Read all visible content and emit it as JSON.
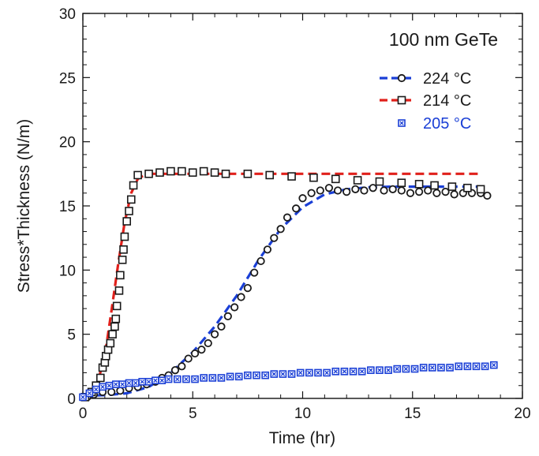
{
  "chart_data": {
    "type": "scatter",
    "annotation": "100 nm GeTe",
    "xlabel": "Time (hr)",
    "ylabel": "Stress*Thickness (N/m)",
    "xlim": [
      0,
      20
    ],
    "ylim": [
      0,
      30
    ],
    "xticks": [
      "0",
      "5",
      "10",
      "15",
      "20"
    ],
    "yticks": [
      "0",
      "5",
      "10",
      "15",
      "20",
      "25",
      "30"
    ],
    "grid": false,
    "legend_position": "top-right",
    "colors": {
      "s224_fit": "#1a3fd6",
      "s224_marker": "#1a1a1a",
      "s214_fit": "#e0201b",
      "s214_marker": "#1a1a1a",
      "s205_marker": "#1a3fd6",
      "s205_text": "#1a3fd6"
    },
    "series": [
      {
        "name": "224 °C",
        "marker": "circle",
        "points": [
          [
            0.2,
            0.1
          ],
          [
            0.5,
            0.3
          ],
          [
            0.9,
            0.5
          ],
          [
            1.3,
            0.5
          ],
          [
            1.7,
            0.6
          ],
          [
            2.1,
            0.8
          ],
          [
            2.5,
            0.9
          ],
          [
            2.9,
            1.1
          ],
          [
            3.3,
            1.3
          ],
          [
            3.6,
            1.6
          ],
          [
            3.9,
            1.8
          ],
          [
            4.2,
            2.2
          ],
          [
            4.5,
            2.5
          ],
          [
            4.8,
            3.1
          ],
          [
            5.1,
            3.5
          ],
          [
            5.4,
            3.8
          ],
          [
            5.7,
            4.3
          ],
          [
            6.0,
            5.0
          ],
          [
            6.3,
            5.6
          ],
          [
            6.6,
            6.4
          ],
          [
            6.9,
            7.1
          ],
          [
            7.2,
            7.9
          ],
          [
            7.5,
            8.6
          ],
          [
            7.8,
            9.8
          ],
          [
            8.1,
            10.7
          ],
          [
            8.4,
            11.6
          ],
          [
            8.7,
            12.5
          ],
          [
            9.0,
            13.2
          ],
          [
            9.3,
            14.1
          ],
          [
            9.7,
            14.8
          ],
          [
            10.0,
            15.6
          ],
          [
            10.4,
            16.0
          ],
          [
            10.8,
            16.2
          ],
          [
            11.2,
            16.4
          ],
          [
            11.6,
            16.2
          ],
          [
            12.0,
            16.1
          ],
          [
            12.4,
            16.3
          ],
          [
            12.8,
            16.2
          ],
          [
            13.2,
            16.4
          ],
          [
            13.7,
            16.2
          ],
          [
            14.1,
            16.3
          ],
          [
            14.5,
            16.2
          ],
          [
            14.9,
            16.0
          ],
          [
            15.3,
            16.1
          ],
          [
            15.7,
            16.2
          ],
          [
            16.1,
            16.0
          ],
          [
            16.5,
            16.1
          ],
          [
            16.9,
            15.9
          ],
          [
            17.3,
            16.0
          ],
          [
            17.7,
            16.0
          ],
          [
            18.1,
            16.0
          ],
          [
            18.4,
            15.8
          ]
        ],
        "fit": [
          [
            0,
            0.2
          ],
          [
            1,
            0.25
          ],
          [
            2,
            0.4
          ],
          [
            3,
            0.9
          ],
          [
            4,
            2.0
          ],
          [
            5,
            3.6
          ],
          [
            6,
            5.6
          ],
          [
            7,
            8.0
          ],
          [
            8,
            10.8
          ],
          [
            9,
            13.2
          ],
          [
            10,
            14.9
          ],
          [
            11,
            15.9
          ],
          [
            12,
            16.3
          ],
          [
            13,
            16.45
          ],
          [
            14,
            16.5
          ],
          [
            18.4,
            16.5
          ]
        ]
      },
      {
        "name": "214 °C",
        "marker": "square",
        "points": [
          [
            0.1,
            0.1
          ],
          [
            0.4,
            0.5
          ],
          [
            0.6,
            1.0
          ],
          [
            0.8,
            1.6
          ],
          [
            0.9,
            2.4
          ],
          [
            1.0,
            2.8
          ],
          [
            1.05,
            3.3
          ],
          [
            1.15,
            3.8
          ],
          [
            1.25,
            4.3
          ],
          [
            1.35,
            5.0
          ],
          [
            1.45,
            5.6
          ],
          [
            1.5,
            6.2
          ],
          [
            1.55,
            7.2
          ],
          [
            1.65,
            8.4
          ],
          [
            1.7,
            9.6
          ],
          [
            1.8,
            10.8
          ],
          [
            1.85,
            11.6
          ],
          [
            1.9,
            12.6
          ],
          [
            2.0,
            13.8
          ],
          [
            2.1,
            14.6
          ],
          [
            2.2,
            15.5
          ],
          [
            2.3,
            16.6
          ],
          [
            2.5,
            17.4
          ],
          [
            3.0,
            17.5
          ],
          [
            3.5,
            17.6
          ],
          [
            4.0,
            17.7
          ],
          [
            4.5,
            17.7
          ],
          [
            5.0,
            17.6
          ],
          [
            5.5,
            17.7
          ],
          [
            6.0,
            17.6
          ],
          [
            6.5,
            17.5
          ],
          [
            7.5,
            17.5
          ],
          [
            8.5,
            17.4
          ],
          [
            9.5,
            17.3
          ],
          [
            10.5,
            17.2
          ],
          [
            11.5,
            17.1
          ],
          [
            12.5,
            17.0
          ],
          [
            13.5,
            16.9
          ],
          [
            14.5,
            16.8
          ],
          [
            15.3,
            16.7
          ],
          [
            16.0,
            16.6
          ],
          [
            16.8,
            16.5
          ],
          [
            17.5,
            16.4
          ],
          [
            18.1,
            16.3
          ]
        ],
        "fit": [
          [
            0,
            0
          ],
          [
            0.6,
            0.8
          ],
          [
            1.0,
            3.3
          ],
          [
            1.3,
            6.8
          ],
          [
            1.6,
            10.4
          ],
          [
            1.9,
            13.7
          ],
          [
            2.2,
            16.0
          ],
          [
            2.5,
            17.1
          ],
          [
            2.9,
            17.5
          ],
          [
            18.1,
            17.5
          ]
        ]
      },
      {
        "name": "205 °C",
        "marker": "square-x",
        "points": [
          [
            0.0,
            0.1
          ],
          [
            0.3,
            0.4
          ],
          [
            0.6,
            0.7
          ],
          [
            0.9,
            0.9
          ],
          [
            1.2,
            1.0
          ],
          [
            1.5,
            1.1
          ],
          [
            1.8,
            1.1
          ],
          [
            2.1,
            1.2
          ],
          [
            2.4,
            1.2
          ],
          [
            2.7,
            1.3
          ],
          [
            3.0,
            1.3
          ],
          [
            3.3,
            1.4
          ],
          [
            3.6,
            1.4
          ],
          [
            3.9,
            1.5
          ],
          [
            4.3,
            1.5
          ],
          [
            4.7,
            1.5
          ],
          [
            5.1,
            1.5
          ],
          [
            5.5,
            1.6
          ],
          [
            5.9,
            1.6
          ],
          [
            6.3,
            1.6
          ],
          [
            6.7,
            1.7
          ],
          [
            7.1,
            1.7
          ],
          [
            7.5,
            1.8
          ],
          [
            7.9,
            1.8
          ],
          [
            8.3,
            1.8
          ],
          [
            8.7,
            1.9
          ],
          [
            9.1,
            1.9
          ],
          [
            9.5,
            1.9
          ],
          [
            9.9,
            2.0
          ],
          [
            10.3,
            2.0
          ],
          [
            10.7,
            2.0
          ],
          [
            11.1,
            2.0
          ],
          [
            11.5,
            2.1
          ],
          [
            11.9,
            2.1
          ],
          [
            12.3,
            2.1
          ],
          [
            12.7,
            2.1
          ],
          [
            13.1,
            2.2
          ],
          [
            13.5,
            2.2
          ],
          [
            13.9,
            2.2
          ],
          [
            14.3,
            2.3
          ],
          [
            14.7,
            2.3
          ],
          [
            15.1,
            2.3
          ],
          [
            15.5,
            2.4
          ],
          [
            15.9,
            2.4
          ],
          [
            16.3,
            2.4
          ],
          [
            16.7,
            2.4
          ],
          [
            17.1,
            2.5
          ],
          [
            17.5,
            2.5
          ],
          [
            17.9,
            2.5
          ],
          [
            18.3,
            2.5
          ],
          [
            18.7,
            2.6
          ]
        ]
      }
    ]
  }
}
